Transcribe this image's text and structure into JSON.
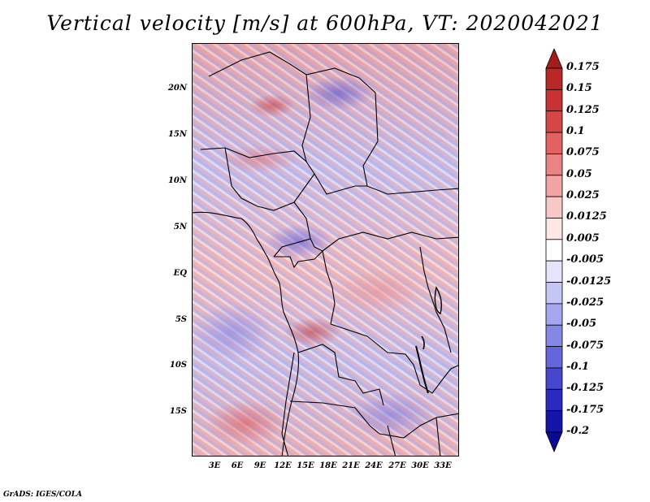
{
  "title": "Vertical velocity [m/s] at 600hPa, VT: 2020042021",
  "credit": "GrADS: IGES/COLA",
  "map": {
    "type": "filled-contour map",
    "region": "Central Africa",
    "lat_ticks": [
      "20N",
      "15N",
      "10N",
      "5N",
      "EQ",
      "5S",
      "10S",
      "15S"
    ],
    "lon_ticks": [
      "3E",
      "6E",
      "9E",
      "12E",
      "15E",
      "18E",
      "21E",
      "24E",
      "27E",
      "30E",
      "33E"
    ]
  },
  "colorbar": {
    "labels": [
      "0.175",
      "0.15",
      "0.125",
      "0.1",
      "0.075",
      "0.05",
      "0.025",
      "0.0125",
      "0.005",
      "-0.005",
      "-0.0125",
      "-0.025",
      "-0.05",
      "-0.075",
      "-0.1",
      "-0.125",
      "-0.175",
      "-0.2"
    ],
    "colors": [
      "#a51c1c",
      "#b82828",
      "#c83232",
      "#d64646",
      "#e26262",
      "#ea8484",
      "#f2a4a4",
      "#f8c8c8",
      "#fde6e6",
      "#ffffff",
      "#e4e4fb",
      "#c6c6f5",
      "#a6a6ef",
      "#8686e6",
      "#6666dc",
      "#4646cf",
      "#2a2ac0",
      "#1414a8",
      "#0a0a96"
    ]
  }
}
